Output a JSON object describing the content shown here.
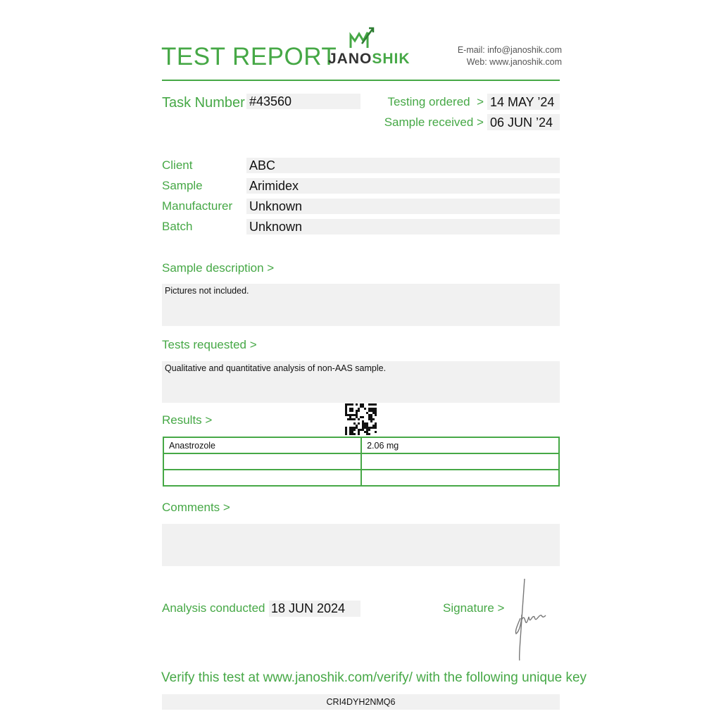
{
  "header": {
    "title": "TEST REPORT",
    "logo": [
      "JANO",
      "SHIK"
    ],
    "email_label": "E-mail:",
    "email": "info@janoshik.com",
    "web_label": "Web:",
    "web": "www.janoshik.com"
  },
  "task": {
    "label": "Task Number",
    "value": "#43560"
  },
  "dates": [
    {
      "label": "Testing ordered  >",
      "value": "14 MAY ’24"
    },
    {
      "label": "Sample received >",
      "value": "06 JUN ’24"
    }
  ],
  "fields": [
    {
      "label": "Client",
      "value": "ABC"
    },
    {
      "label": "Sample",
      "value": "Arimidex"
    },
    {
      "label": "Manufacturer",
      "value": "Unknown"
    },
    {
      "label": "Batch",
      "value": "Unknown"
    }
  ],
  "sample_description": {
    "label": "Sample description >",
    "text": "Pictures not included."
  },
  "tests_requested": {
    "label": "Tests requested >",
    "text": "Qualitative and quantitative analysis of non-AAS sample."
  },
  "results": {
    "label": "Results >",
    "rows": [
      [
        "Anastrozole",
        "2.06 mg"
      ]
    ]
  },
  "comments": {
    "label": "Comments >"
  },
  "analysis": {
    "label": "Analysis conducted >",
    "value": "18 JUN 2024"
  },
  "signature": {
    "label": "Signature >"
  },
  "verify": {
    "text": "Verify this test at www.janoshik.com/verify/ with the following unique key",
    "key": "CRI4DYH2NMQ6"
  }
}
